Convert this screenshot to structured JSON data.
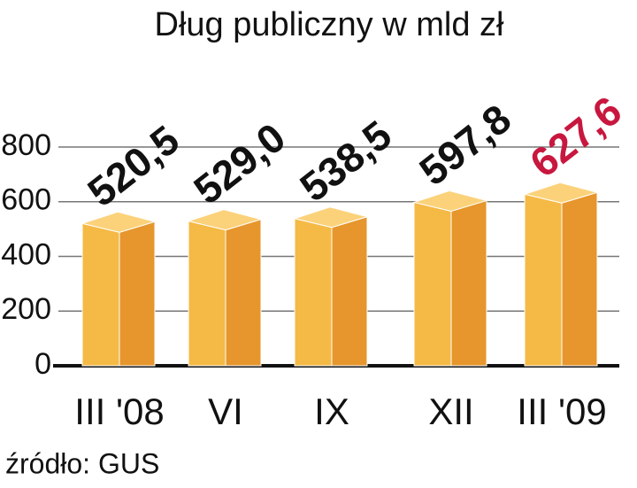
{
  "chart_data": {
    "type": "bar3d",
    "title": "Dług publiczny w mld zł",
    "categories": [
      "III '08",
      "VI",
      "IX",
      "XII",
      "III '09"
    ],
    "values": [
      520.5,
      529.0,
      538.5,
      597.8,
      627.6
    ],
    "value_labels": [
      "520,5",
      "529,0",
      "538,5",
      "597,8",
      "627,6"
    ],
    "value_label_colors": [
      "#111111",
      "#111111",
      "#111111",
      "#111111",
      "#c8173f"
    ],
    "color": "#f5b945",
    "side_color": "#e6962c",
    "top_color": "#fbd27a",
    "ylim": [
      0,
      800
    ],
    "yticks": [
      0,
      200,
      400,
      600,
      800
    ],
    "grid": true,
    "source": "źródło: GUS"
  }
}
